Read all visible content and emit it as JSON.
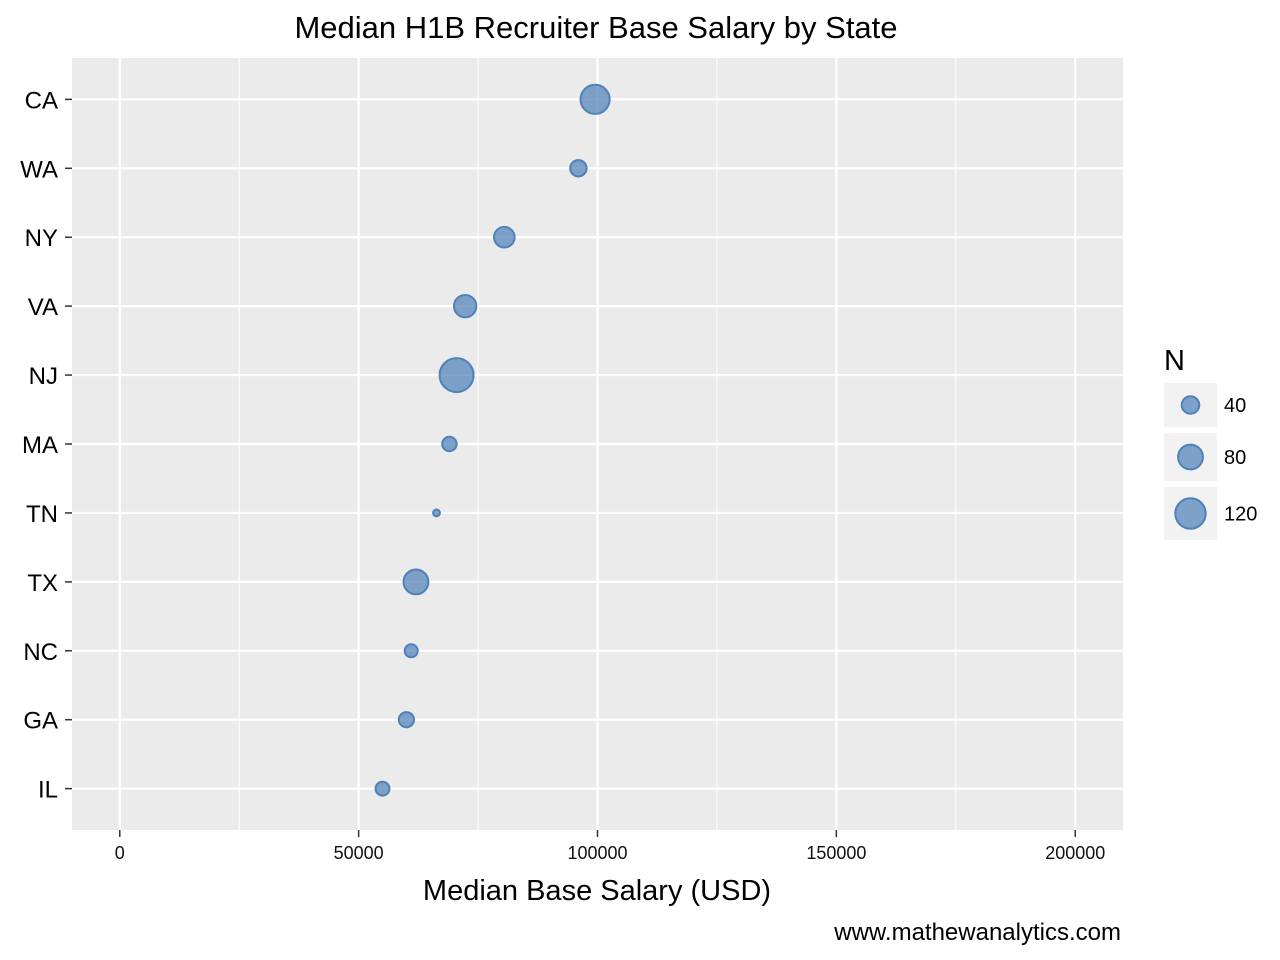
{
  "chart_data": {
    "type": "scatter",
    "title": "Median H1B Recruiter Base Salary by State",
    "xlabel": "Median Base Salary (USD)",
    "ylabel": "",
    "caption": "www.mathewanalytics.com",
    "xlim": [
      -10000,
      210000
    ],
    "xticks": [
      0,
      50000,
      100000,
      150000,
      200000
    ],
    "xtick_labels": [
      "0",
      "50000",
      "100000",
      "150000",
      "200000"
    ],
    "grid": true,
    "point_color": "#4f81b9",
    "panel_background": "#ebebeb",
    "categories": [
      "CA",
      "WA",
      "NY",
      "VA",
      "NJ",
      "MA",
      "TN",
      "TX",
      "NC",
      "GA",
      "IL"
    ],
    "x": [
      99500,
      96000,
      80500,
      72300,
      70500,
      69000,
      66300,
      62000,
      61000,
      60000,
      55000
    ],
    "size": [
      110,
      35,
      55,
      65,
      150,
      27,
      6,
      80,
      22,
      30,
      25
    ],
    "legend": {
      "title": "N",
      "position": "right",
      "entries": [
        {
          "label": "40",
          "value": 40
        },
        {
          "label": "80",
          "value": 80
        },
        {
          "label": "120",
          "value": 120
        }
      ]
    }
  }
}
